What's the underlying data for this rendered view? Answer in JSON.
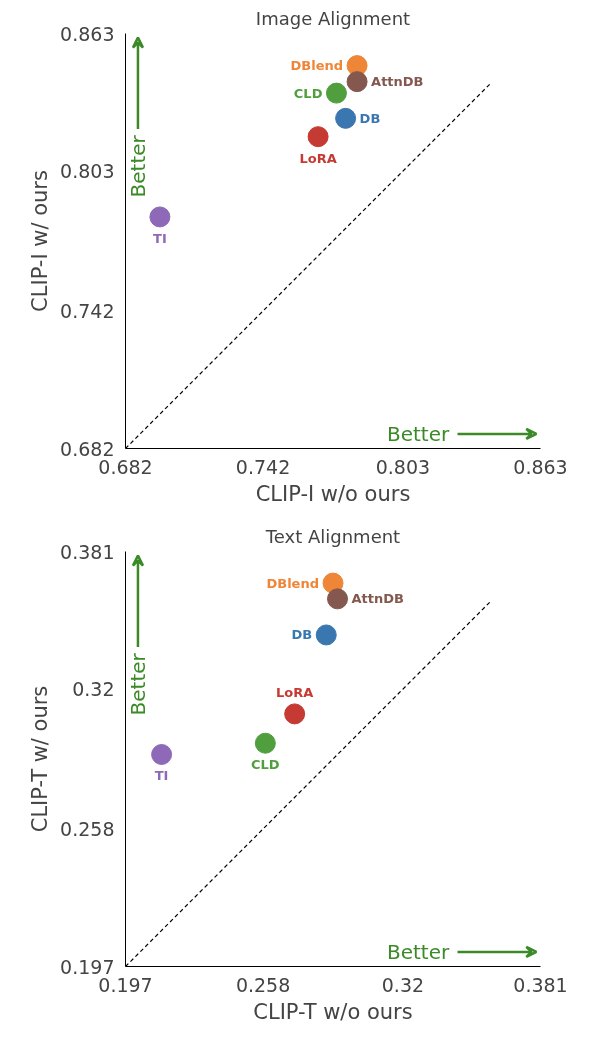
{
  "chart_data": [
    {
      "type": "scatter",
      "title": "Image Alignment",
      "xlabel": "CLIP-I w/o ours",
      "ylabel": "CLIP-I w/ ours",
      "xlim": [
        0.682,
        0.863
      ],
      "ylim": [
        0.682,
        0.863
      ],
      "xticks": [
        0.682,
        0.742,
        0.803,
        0.863
      ],
      "yticks": [
        0.682,
        0.742,
        0.803,
        0.863
      ],
      "grid": false,
      "marker": "circle",
      "annotations": [
        "Better",
        "Better"
      ],
      "series": [
        {
          "name": "DBlend",
          "color": "#ef8536",
          "x": [
            0.783
          ],
          "values": [
            0.849
          ]
        },
        {
          "name": "AttnDB",
          "color": "#84584e",
          "x": [
            0.783
          ],
          "values": [
            0.842
          ]
        },
        {
          "name": "CLD",
          "color": "#519e3e",
          "x": [
            0.774
          ],
          "values": [
            0.837
          ]
        },
        {
          "name": "DB",
          "color": "#3a76af",
          "x": [
            0.778
          ],
          "values": [
            0.826
          ]
        },
        {
          "name": "LoRA",
          "color": "#c53a32",
          "x": [
            0.766
          ],
          "values": [
            0.818
          ]
        },
        {
          "name": "TI",
          "color": "#8d69b8",
          "x": [
            0.697
          ],
          "values": [
            0.783
          ]
        },
        {
          "type": "line",
          "line_style": "dashed",
          "marker": "none",
          "color": "#000000",
          "x": [
            0.682,
            0.841
          ],
          "values": [
            0.682,
            0.841
          ]
        }
      ]
    },
    {
      "type": "scatter",
      "title": "Text Alignment",
      "xlabel": "CLIP-T w/o ours",
      "ylabel": "CLIP-T w/ ours",
      "xlim": [
        0.197,
        0.381
      ],
      "ylim": [
        0.197,
        0.381
      ],
      "xticks": [
        0.197,
        0.258,
        0.32,
        0.381
      ],
      "yticks": [
        0.197,
        0.258,
        0.32,
        0.381
      ],
      "grid": false,
      "marker": "circle",
      "annotations": [
        "Better",
        "Better"
      ],
      "series": [
        {
          "name": "DBlend",
          "color": "#ef8536",
          "x": [
            0.289
          ],
          "values": [
            0.367
          ]
        },
        {
          "name": "AttnDB",
          "color": "#84584e",
          "x": [
            0.291
          ],
          "values": [
            0.36
          ]
        },
        {
          "name": "DB",
          "color": "#3a76af",
          "x": [
            0.286
          ],
          "values": [
            0.344
          ]
        },
        {
          "name": "LoRA",
          "color": "#c53a32",
          "x": [
            0.272
          ],
          "values": [
            0.309
          ]
        },
        {
          "name": "CLD",
          "color": "#519e3e",
          "x": [
            0.259
          ],
          "values": [
            0.296
          ]
        },
        {
          "name": "TI",
          "color": "#8d69b8",
          "x": [
            0.213
          ],
          "values": [
            0.291
          ]
        },
        {
          "type": "line",
          "line_style": "dashed",
          "marker": "none",
          "color": "#000000",
          "x": [
            0.197,
            0.359
          ],
          "values": [
            0.197,
            0.359
          ]
        }
      ]
    }
  ]
}
